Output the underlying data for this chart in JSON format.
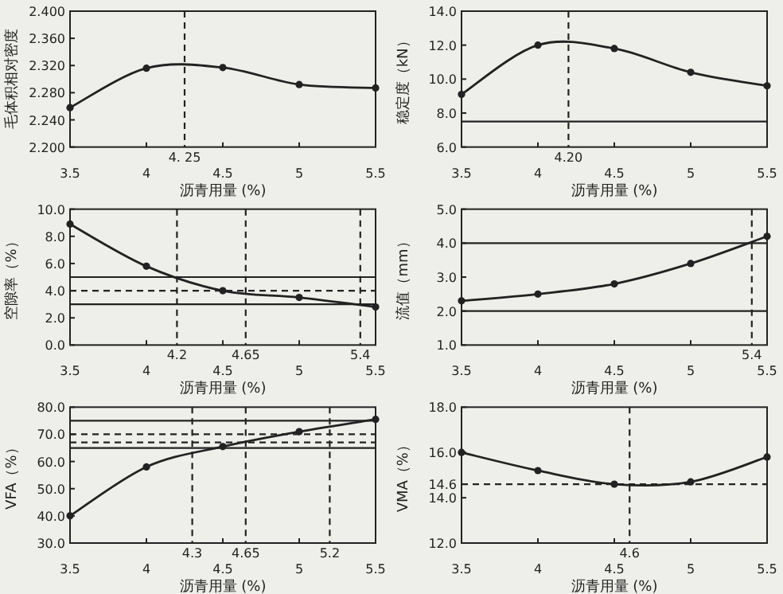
{
  "chart_data": [
    {
      "type": "line",
      "xlabel": "沥青用量 (%)",
      "ylabel": "毛体积相对密度",
      "x": [
        3.5,
        4,
        4.5,
        5,
        5.5
      ],
      "xlim": [
        3.5,
        5.5
      ],
      "ylim": [
        2.2,
        2.4
      ],
      "xticks": [
        3.5,
        4,
        4.5,
        5,
        5.5
      ],
      "yticks": [
        {
          "value": 2.2,
          "label": "2.200"
        },
        {
          "value": 2.24,
          "label": "2.240"
        },
        {
          "value": 2.28,
          "label": "2.280"
        },
        {
          "value": 2.32,
          "label": "2.320"
        },
        {
          "value": 2.36,
          "label": "2.360"
        },
        {
          "value": 2.4,
          "label": "2.400"
        }
      ],
      "series": [
        {
          "color": "#222222",
          "values": [
            2.258,
            2.316,
            2.317,
            2.292,
            2.287
          ]
        }
      ],
      "ref_lines": [
        {
          "axis": "x",
          "value": 4.25,
          "label": "4. 25",
          "line_style": "dashed"
        }
      ],
      "marker": "circle",
      "line_style": "solid"
    },
    {
      "type": "line",
      "xlabel": "沥青用量 (%)",
      "ylabel": "稳定度（kN）",
      "x": [
        3.5,
        4,
        4.5,
        5,
        5.5
      ],
      "xlim": [
        3.5,
        5.5
      ],
      "ylim": [
        6,
        14
      ],
      "xticks": [
        3.5,
        4,
        4.5,
        5,
        5.5
      ],
      "yticks": [
        {
          "value": 6,
          "label": "6.0"
        },
        {
          "value": 8,
          "label": "8.0"
        },
        {
          "value": 10,
          "label": "10.0"
        },
        {
          "value": 12,
          "label": "12.0"
        },
        {
          "value": 14,
          "label": "14.0"
        }
      ],
      "series": [
        {
          "color": "#222222",
          "values": [
            9.1,
            12.0,
            11.8,
            10.4,
            9.6
          ]
        }
      ],
      "ref_lines": [
        {
          "axis": "x",
          "value": 4.2,
          "label": "4.20",
          "line_style": "dashed"
        },
        {
          "axis": "y",
          "value": 7.5,
          "line_style": "solid"
        }
      ],
      "marker": "circle",
      "line_style": "solid"
    },
    {
      "type": "line",
      "xlabel": "沥青用量 (%)",
      "ylabel": "空隙率（%）",
      "x": [
        3.5,
        4,
        4.5,
        5,
        5.5
      ],
      "xlim": [
        3.5,
        5.5
      ],
      "ylim": [
        0,
        10
      ],
      "xticks": [
        3.5,
        4,
        4.5,
        5,
        5.5
      ],
      "yticks": [
        {
          "value": 0,
          "label": "0.0"
        },
        {
          "value": 2,
          "label": "2.0"
        },
        {
          "value": 4,
          "label": "4.0"
        },
        {
          "value": 6,
          "label": "6.0"
        },
        {
          "value": 8,
          "label": "8.0"
        },
        {
          "value": 10,
          "label": "10.0"
        }
      ],
      "series": [
        {
          "color": "#222222",
          "values": [
            8.9,
            5.8,
            4.0,
            3.5,
            2.8
          ]
        }
      ],
      "ref_lines": [
        {
          "axis": "y",
          "value": 5,
          "line_style": "solid"
        },
        {
          "axis": "y",
          "value": 3,
          "line_style": "solid"
        },
        {
          "axis": "y",
          "value": 4,
          "line_style": "dashed"
        },
        {
          "axis": "x",
          "value": 4.2,
          "label": "4.2",
          "line_style": "dashed"
        },
        {
          "axis": "x",
          "value": 4.65,
          "label": "4.65",
          "line_style": "dashed"
        },
        {
          "axis": "x",
          "value": 5.4,
          "label": "5.4",
          "line_style": "dashed"
        }
      ],
      "marker": "circle",
      "line_style": "solid"
    },
    {
      "type": "line",
      "xlabel": "沥青用量 (%)",
      "ylabel": "流值（mm）",
      "x": [
        3.5,
        4,
        4.5,
        5,
        5.5
      ],
      "xlim": [
        3.5,
        5.5
      ],
      "ylim": [
        1,
        5
      ],
      "xticks": [
        3.5,
        4,
        4.5,
        5,
        5.5
      ],
      "yticks": [
        {
          "value": 1,
          "label": "1.0"
        },
        {
          "value": 2,
          "label": "2.0"
        },
        {
          "value": 3,
          "label": "3.0"
        },
        {
          "value": 4,
          "label": "4.0"
        },
        {
          "value": 5,
          "label": "5.0"
        }
      ],
      "series": [
        {
          "color": "#222222",
          "values": [
            2.3,
            2.5,
            2.8,
            3.4,
            4.2
          ]
        }
      ],
      "ref_lines": [
        {
          "axis": "y",
          "value": 4,
          "line_style": "solid"
        },
        {
          "axis": "y",
          "value": 2,
          "line_style": "solid"
        },
        {
          "axis": "x",
          "value": 5.4,
          "label": "5.4",
          "line_style": "dashed"
        }
      ],
      "marker": "circle",
      "line_style": "solid"
    },
    {
      "type": "line",
      "xlabel": "沥青用量 (%)",
      "ylabel": "VFA（%）",
      "x": [
        3.5,
        4,
        4.5,
        5,
        5.5
      ],
      "xlim": [
        3.5,
        5.5
      ],
      "ylim": [
        30,
        80
      ],
      "xticks": [
        3.5,
        4,
        4.5,
        5,
        5.5
      ],
      "yticks": [
        {
          "value": 30,
          "label": "30.0"
        },
        {
          "value": 40,
          "label": "40.0"
        },
        {
          "value": 50,
          "label": "50.0"
        },
        {
          "value": 60,
          "label": "60.0"
        },
        {
          "value": 70,
          "label": "70.0"
        },
        {
          "value": 80,
          "label": "80.0"
        }
      ],
      "series": [
        {
          "color": "#222222",
          "values": [
            40,
            58,
            65.5,
            71,
            75.5
          ]
        }
      ],
      "ref_lines": [
        {
          "axis": "y",
          "value": 75,
          "line_style": "solid"
        },
        {
          "axis": "y",
          "value": 65,
          "line_style": "solid"
        },
        {
          "axis": "y",
          "value": 70,
          "line_style": "dashed"
        },
        {
          "axis": "y",
          "value": 67,
          "line_style": "dashed"
        },
        {
          "axis": "x",
          "value": 4.3,
          "label": "4.3",
          "line_style": "dashed"
        },
        {
          "axis": "x",
          "value": 4.65,
          "label": "4.65",
          "line_style": "dashed"
        },
        {
          "axis": "x",
          "value": 5.2,
          "label": "5.2",
          "line_style": "dashed"
        }
      ],
      "marker": "circle",
      "line_style": "solid"
    },
    {
      "type": "line",
      "xlabel": "沥青用量 (%)",
      "ylabel": "VMA（%）",
      "x": [
        3.5,
        4,
        4.5,
        5,
        5.5
      ],
      "xlim": [
        3.5,
        5.5
      ],
      "ylim": [
        12,
        18
      ],
      "xticks": [
        3.5,
        4,
        4.5,
        5,
        5.5
      ],
      "yticks": [
        {
          "value": 12,
          "label": "12.0"
        },
        {
          "value": 14,
          "label": "14.0"
        },
        {
          "value": 16,
          "label": "16.0"
        },
        {
          "value": 18,
          "label": "18.0"
        }
      ],
      "series": [
        {
          "color": "#222222",
          "values": [
            16.0,
            15.2,
            14.6,
            14.7,
            15.8
          ]
        }
      ],
      "ref_lines": [
        {
          "axis": "y",
          "value": 14.6,
          "label": "14.6",
          "line_style": "dashed"
        },
        {
          "axis": "x",
          "value": 4.6,
          "label": "4.6",
          "line_style": "dashed"
        }
      ],
      "marker": "circle",
      "line_style": "solid"
    }
  ]
}
